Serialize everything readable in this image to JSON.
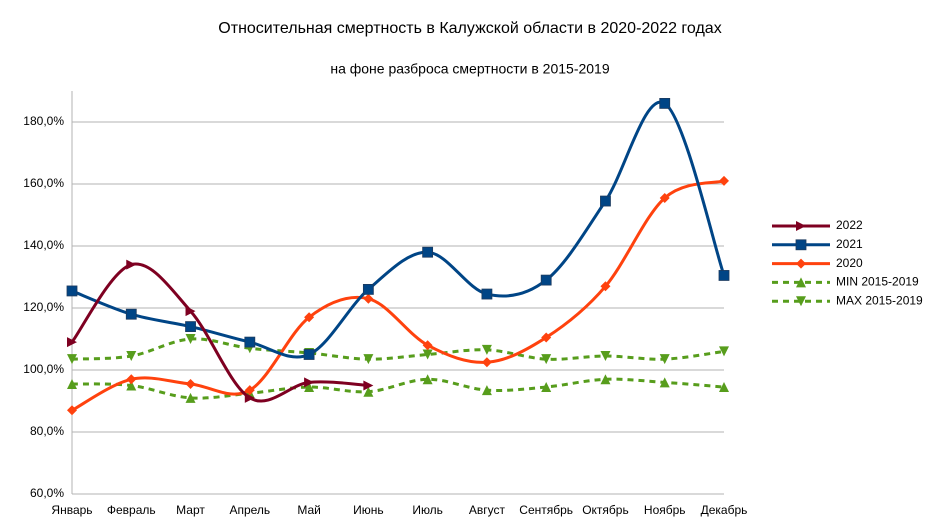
{
  "chart_data": {
    "type": "line",
    "title": "Относительная смертность в Калужской области в 2020-2022 годах",
    "subtitle": "на фоне разброса смертности в 2015-2019",
    "categories": [
      "Январь",
      "Февраль",
      "Март",
      "Апрель",
      "Май",
      "Июнь",
      "Июль",
      "Август",
      "Сентябрь",
      "Октябрь",
      "Ноябрь",
      "Декабрь"
    ],
    "series": [
      {
        "name": "2022",
        "color": "#7e0021",
        "marker": "triangle-right",
        "dashed": false,
        "values": [
          109,
          134,
          119,
          91,
          96,
          95,
          null,
          null,
          null,
          null,
          null,
          null
        ]
      },
      {
        "name": "2021",
        "color": "#004586",
        "marker": "square",
        "dashed": false,
        "values": [
          125.5,
          118,
          114,
          109,
          105,
          126,
          138,
          124.5,
          129,
          154.5,
          186,
          130.5
        ]
      },
      {
        "name": "2020",
        "color": "#ff420e",
        "marker": "diamond",
        "dashed": false,
        "values": [
          87,
          97,
          95.5,
          93.5,
          117,
          123,
          108,
          102.5,
          110.5,
          127,
          155.5,
          161
        ]
      },
      {
        "name": "MIN 2015-2019",
        "color": "#579d1c",
        "marker": "triangle-up",
        "dashed": true,
        "values": [
          95.5,
          95,
          91,
          92.5,
          94.5,
          93,
          97,
          93.5,
          94.5,
          97,
          96,
          94.5
        ]
      },
      {
        "name": "MAX 2015-2019",
        "color": "#579d1c",
        "marker": "triangle-down",
        "dashed": true,
        "values": [
          103.5,
          104.5,
          110,
          107,
          105.5,
          103.5,
          105,
          106.5,
          103.5,
          104.5,
          103.5,
          106
        ]
      }
    ],
    "ylim": [
      60,
      190
    ],
    "yticks": [
      {
        "value": 60,
        "label": "60,0%"
      },
      {
        "value": 80,
        "label": "80,0%"
      },
      {
        "value": 100,
        "label": "100,0%"
      },
      {
        "value": 120,
        "label": "120,0%"
      },
      {
        "value": 140,
        "label": "140,0%"
      },
      {
        "value": 160,
        "label": "160,0%"
      },
      {
        "value": 180,
        "label": "180,0%"
      }
    ],
    "grid": true,
    "smooth": true,
    "legend": "right"
  }
}
